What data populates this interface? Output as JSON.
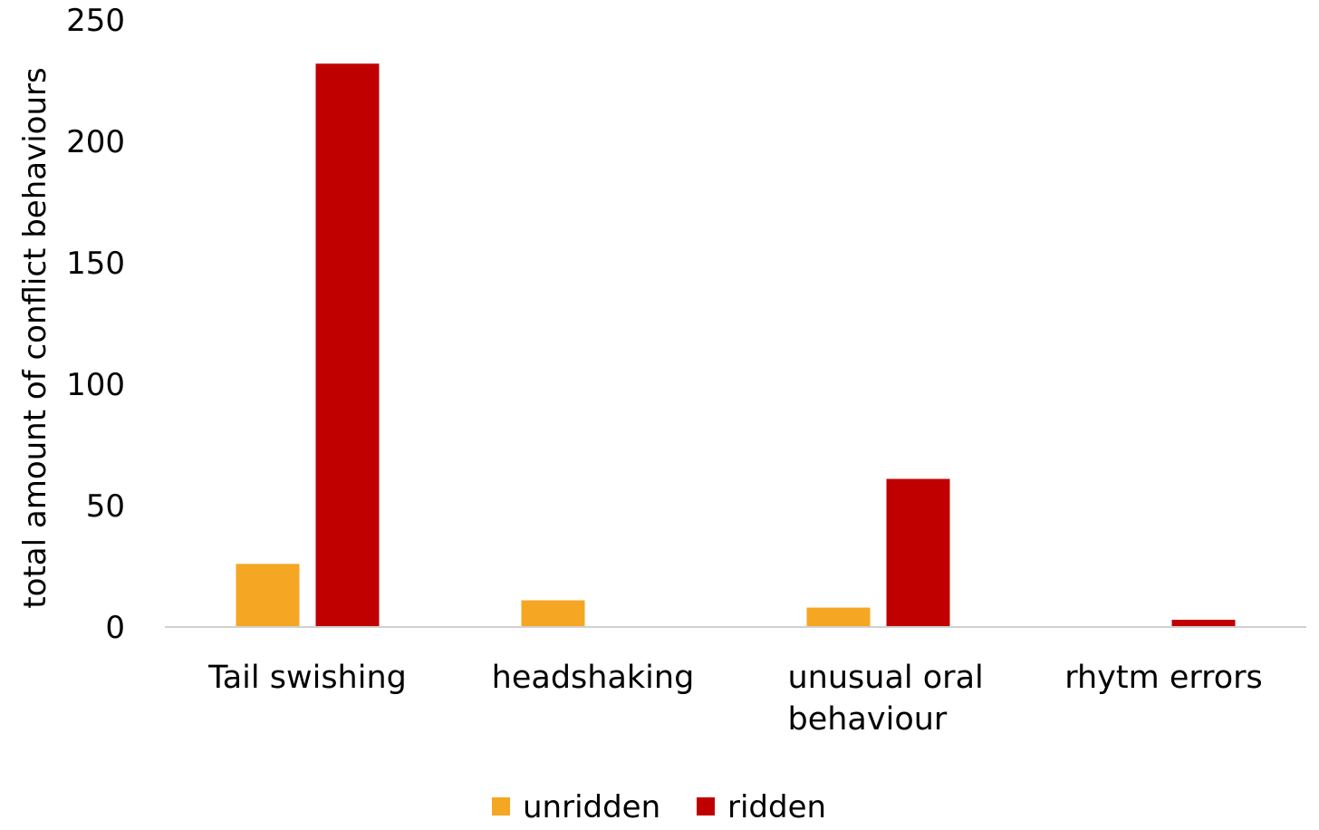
{
  "chart_data": {
    "type": "bar",
    "title": "",
    "xlabel": "",
    "ylabel": "total amount of conflict behaviours",
    "ylim": [
      0,
      250
    ],
    "yticks": [
      0,
      50,
      100,
      150,
      200,
      250
    ],
    "categories": [
      [
        "Tail swishing"
      ],
      [
        "headshaking"
      ],
      [
        "unusual oral",
        "behaviour"
      ],
      [
        "rhytm errors"
      ]
    ],
    "series": [
      {
        "name": "unridden",
        "color": "#F5A623",
        "values": [
          26,
          11,
          8,
          0
        ]
      },
      {
        "name": "ridden",
        "color": "#C00000",
        "values": [
          232,
          0,
          61,
          3
        ]
      }
    ],
    "grid": false,
    "legend_position": "bottom-center"
  }
}
